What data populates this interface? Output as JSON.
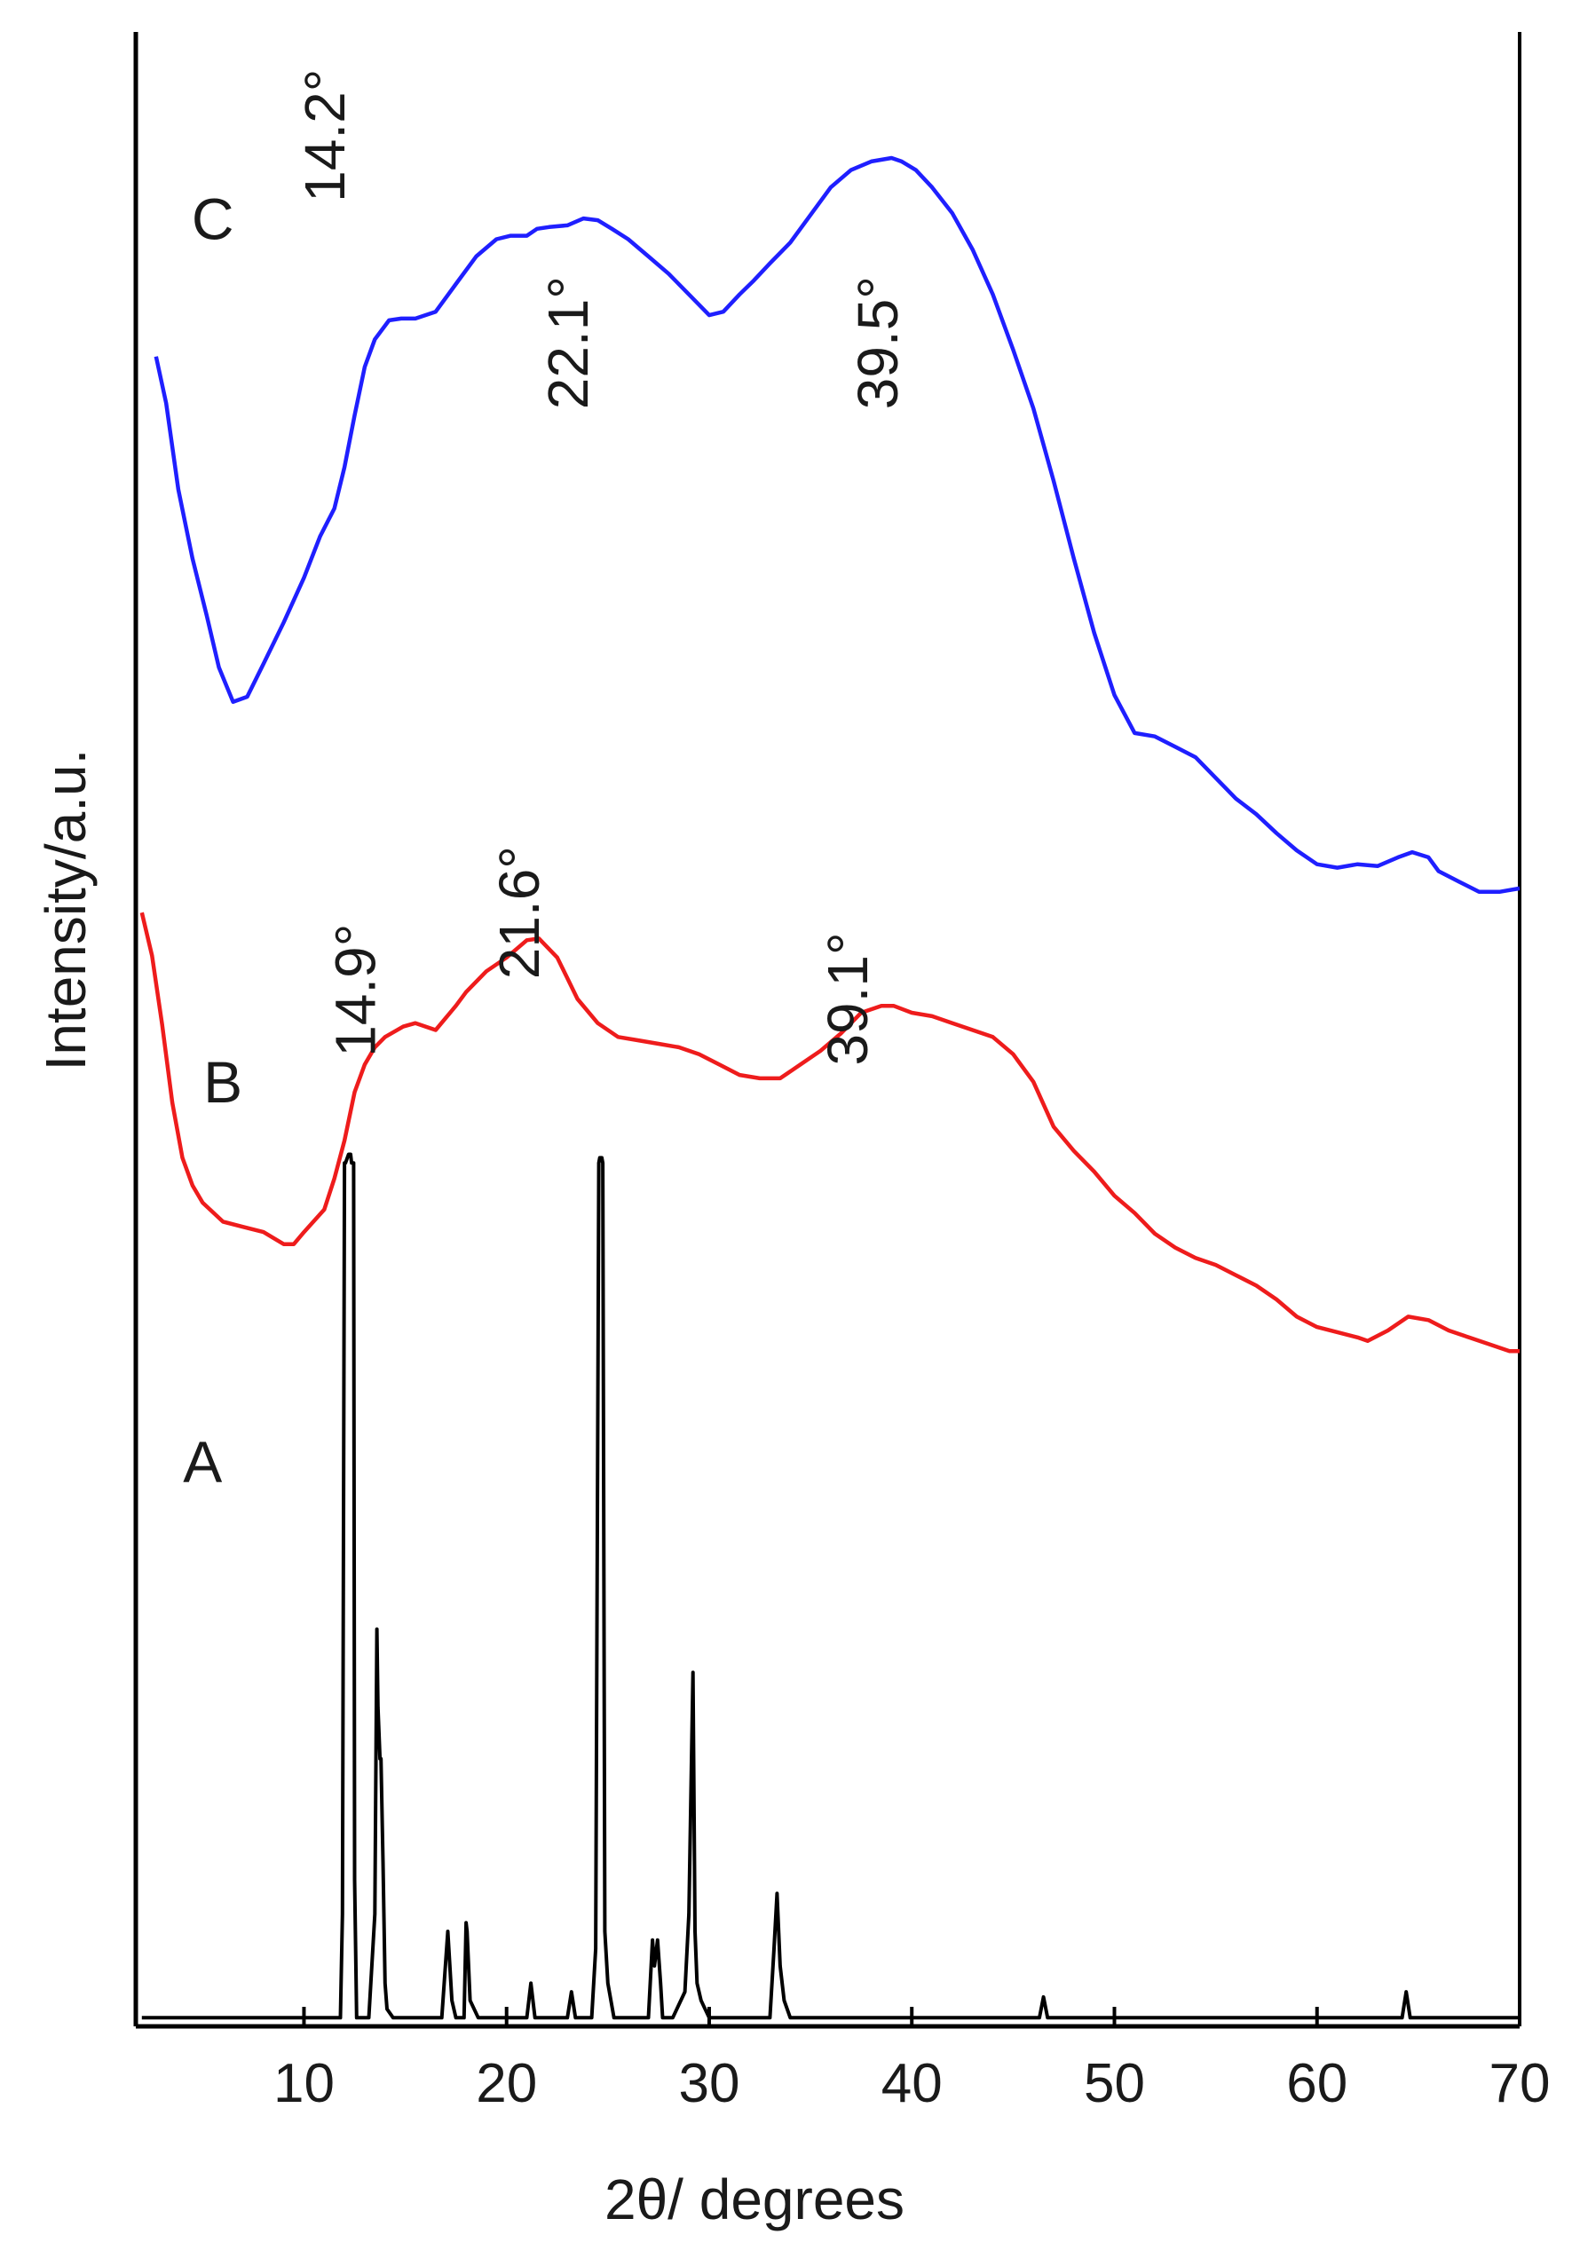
{
  "chart_data": {
    "type": "line",
    "xlabel": "2θ/ degrees",
    "ylabel": "Intensity/a.u.",
    "xlim": [
      1.7,
      70
    ],
    "x_ticks": [
      10,
      20,
      30,
      40,
      50,
      60,
      70
    ],
    "x_tick_labels": [
      "10",
      "20",
      "30",
      "40",
      "50",
      "60",
      "70"
    ],
    "y_ticks_shown": false,
    "grid": false,
    "stacked_offset": true,
    "series": [
      {
        "name": "C",
        "color": "#1f1fff",
        "x": [
          2.7,
          3.2,
          3.8,
          4.5,
          5.2,
          5.8,
          6.5,
          7.2,
          8.0,
          9.0,
          10.0,
          10.8,
          11.5,
          12.0,
          12.5,
          13.0,
          13.5,
          14.2,
          14.8,
          15.5,
          16.5,
          17.5,
          18.5,
          19.5,
          20.2,
          21.0,
          21.5,
          22.1,
          23.0,
          23.8,
          24.5,
          25.2,
          26.0,
          27.0,
          28.0,
          29.0,
          30.0,
          30.7,
          31.5,
          32.2,
          33.0,
          34.0,
          35.0,
          36.0,
          37.0,
          38.0,
          39.0,
          39.5,
          40.2,
          41.0,
          42.0,
          43.0,
          44.0,
          45.0,
          46.0,
          47.0,
          48.0,
          49.0,
          50.0,
          51.0,
          52.0,
          53.0,
          54.0,
          55.0,
          56.0,
          57.0,
          58.0,
          59.0,
          60.0,
          61.0,
          62.0,
          63.0,
          64.0,
          64.7,
          65.5,
          66.0,
          67.0,
          68.0,
          69.0,
          70.0
        ],
        "y": [
          9.62,
          9.35,
          8.85,
          8.45,
          8.12,
          7.82,
          7.62,
          7.65,
          7.84,
          8.08,
          8.34,
          8.58,
          8.74,
          8.98,
          9.28,
          9.56,
          9.72,
          9.83,
          9.84,
          9.84,
          9.88,
          10.04,
          10.2,
          10.3,
          10.32,
          10.32,
          10.36,
          10.37,
          10.38,
          10.42,
          10.41,
          10.36,
          10.3,
          10.2,
          10.1,
          9.98,
          9.86,
          9.88,
          9.98,
          10.06,
          10.16,
          10.28,
          10.44,
          10.6,
          10.7,
          10.75,
          10.77,
          10.75,
          10.7,
          10.6,
          10.45,
          10.24,
          9.98,
          9.66,
          9.32,
          8.9,
          8.45,
          8.02,
          7.66,
          7.44,
          7.42,
          7.36,
          7.3,
          7.18,
          7.06,
          6.97,
          6.86,
          6.76,
          6.68,
          6.66,
          6.68,
          6.67,
          6.72,
          6.75,
          6.72,
          6.64,
          6.58,
          6.52,
          6.52,
          6.54
        ]
      },
      {
        "name": "B",
        "color": "#ee1c1c",
        "x": [
          2.0,
          2.5,
          3.0,
          3.5,
          4.0,
          4.5,
          5.0,
          6.0,
          7.0,
          8.0,
          9.0,
          9.5,
          10.0,
          11.0,
          11.5,
          12.0,
          12.5,
          13.0,
          13.5,
          14.0,
          14.9,
          15.5,
          16.5,
          17.5,
          18.0,
          19.0,
          20.0,
          21.0,
          21.6,
          22.5,
          23.5,
          24.5,
          25.5,
          26.5,
          27.5,
          28.5,
          29.5,
          30.5,
          31.5,
          32.5,
          33.5,
          34.5,
          35.5,
          36.5,
          37.5,
          38.5,
          39.1,
          40.0,
          41.0,
          42.0,
          43.0,
          44.0,
          45.0,
          46.0,
          47.0,
          48.0,
          49.0,
          50.0,
          51.0,
          52.0,
          53.0,
          54.0,
          55.0,
          56.0,
          57.0,
          58.0,
          59.0,
          60.0,
          61.0,
          62.0,
          62.5,
          63.5,
          64.5,
          65.5,
          66.5,
          67.5,
          68.5,
          69.5,
          70.0
        ],
        "y": [
          6.4,
          6.15,
          5.75,
          5.3,
          4.98,
          4.82,
          4.72,
          4.61,
          4.58,
          4.55,
          4.48,
          4.48,
          4.55,
          4.68,
          4.86,
          5.08,
          5.36,
          5.52,
          5.62,
          5.68,
          5.74,
          5.76,
          5.72,
          5.86,
          5.94,
          6.06,
          6.14,
          6.24,
          6.25,
          6.14,
          5.9,
          5.76,
          5.68,
          5.66,
          5.64,
          5.62,
          5.58,
          5.52,
          5.46,
          5.44,
          5.44,
          5.52,
          5.6,
          5.7,
          5.82,
          5.86,
          5.86,
          5.82,
          5.8,
          5.76,
          5.72,
          5.68,
          5.58,
          5.42,
          5.16,
          5.02,
          4.9,
          4.76,
          4.66,
          4.54,
          4.46,
          4.4,
          4.36,
          4.3,
          4.24,
          4.16,
          4.06,
          4.0,
          3.97,
          3.94,
          3.92,
          3.98,
          4.06,
          4.04,
          3.98,
          3.94,
          3.9,
          3.86,
          3.86
        ]
      },
      {
        "name": "A",
        "color": "#000000",
        "x": [
          2.0,
          11.8,
          11.9,
          12.0,
          12.05,
          12.2,
          12.3,
          12.35,
          12.45,
          12.5,
          12.6,
          13.2,
          13.5,
          13.6,
          13.65,
          13.75,
          13.8,
          13.9,
          14.0,
          14.1,
          14.4,
          16.8,
          17.1,
          17.3,
          17.5,
          17.9,
          18.0,
          18.05,
          18.2,
          18.6,
          21.0,
          21.2,
          21.4,
          23.0,
          23.2,
          23.4,
          24.2,
          24.4,
          24.55,
          24.6,
          24.7,
          24.75,
          24.85,
          25.0,
          25.3,
          27.0,
          27.2,
          27.3,
          27.45,
          27.6,
          27.7,
          28.2,
          28.8,
          29.0,
          29.2,
          29.3,
          29.4,
          29.6,
          30.0,
          30.5,
          33.0,
          33.2,
          33.35,
          33.5,
          33.7,
          34.0,
          34.5,
          46.3,
          46.5,
          46.7,
          64.2,
          64.4,
          64.6,
          70.0
        ],
        "y": [
          0.0,
          0.0,
          0.6,
          4.95,
          4.95,
          5.0,
          5.0,
          4.95,
          4.95,
          0.8,
          0.0,
          0.0,
          0.6,
          2.25,
          1.8,
          1.5,
          1.5,
          0.9,
          0.2,
          0.05,
          0.0,
          0.0,
          0.5,
          0.1,
          0.0,
          0.0,
          0.55,
          0.5,
          0.1,
          0.0,
          0.0,
          0.2,
          0.0,
          0.0,
          0.15,
          0.0,
          0.0,
          0.4,
          4.95,
          4.98,
          4.98,
          4.95,
          0.5,
          0.2,
          0.0,
          0.0,
          0.45,
          0.3,
          0.45,
          0.2,
          0.0,
          0.0,
          0.15,
          0.6,
          2.0,
          0.5,
          0.2,
          0.1,
          0.0,
          0.0,
          0.0,
          0.4,
          0.72,
          0.3,
          0.1,
          0.0,
          0.0,
          0.0,
          0.12,
          0.0,
          0.0,
          0.15,
          0.0,
          0.0
        ]
      }
    ],
    "series_labels": [
      {
        "text": "C",
        "series": "C",
        "x": 5.5,
        "y": 10.3
      },
      {
        "text": "B",
        "series": "B",
        "x": 6.0,
        "y": 5.3
      },
      {
        "text": "A",
        "series": "A",
        "x": 5.0,
        "y": 3.1
      }
    ],
    "annotations": [
      {
        "text": "14.2°",
        "x": 12.0,
        "y": 10.9,
        "rotation": -90,
        "series": "C"
      },
      {
        "text": "22.1°",
        "x": 24.0,
        "y": 9.7,
        "rotation": -90,
        "series": "C"
      },
      {
        "text": "39.5°",
        "x": 39.3,
        "y": 9.7,
        "rotation": -90,
        "series": "C"
      },
      {
        "text": "14.9°",
        "x": 13.5,
        "y": 5.95,
        "rotation": -90,
        "series": "B"
      },
      {
        "text": "21.6°",
        "x": 21.6,
        "y": 6.4,
        "rotation": -90,
        "series": "B"
      },
      {
        "text": "39.1°",
        "x": 37.8,
        "y": 5.9,
        "rotation": -90,
        "series": "B"
      }
    ],
    "ylim": [
      -0.05,
      11.5
    ]
  }
}
